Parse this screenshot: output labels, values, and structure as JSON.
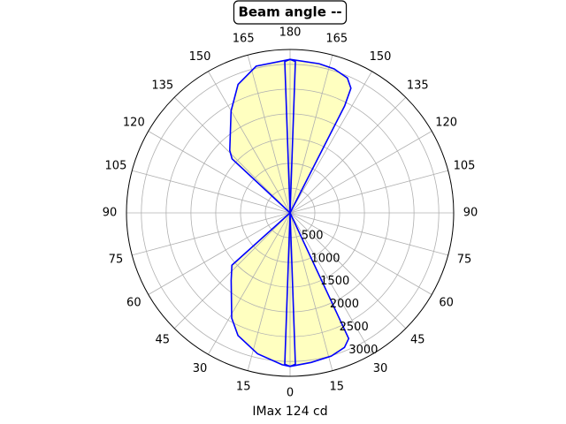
{
  "chart_data": {
    "type": "polar",
    "title": "Beam angle --",
    "xlabel": "IMax 124 cd",
    "rlim": [
      0,
      3300
    ],
    "rticks": [
      500,
      1000,
      1500,
      2000,
      2500,
      3000
    ],
    "thetaticks": [
      0,
      15,
      30,
      45,
      60,
      75,
      90,
      105,
      120,
      135,
      150,
      165,
      180,
      {
        "value": 195,
        "label": "165"
      },
      {
        "value": 210,
        "label": "150"
      },
      {
        "value": 225,
        "label": "135"
      },
      {
        "value": 240,
        "label": "120"
      },
      {
        "value": 255,
        "label": "105"
      },
      {
        "value": 270,
        "label": "90"
      },
      {
        "value": 285,
        "label": "75"
      },
      {
        "value": 300,
        "label": "60"
      },
      {
        "value": 315,
        "label": "45"
      },
      {
        "value": 330,
        "label": "30"
      },
      {
        "value": 345,
        "label": "15"
      }
    ],
    "grid": true,
    "series": [
      {
        "color": "#0000ff",
        "fill": "#ffffc0",
        "theta": [
          0,
          8,
          16,
          22,
          25,
          26,
          152,
          153,
          154,
          157,
          163,
          169,
          180,
          193,
          202,
          210,
          224,
          227,
          236,
          311,
          312,
          319,
          331,
          337,
          347,
          357,
          360
        ],
        "values": [
          3100,
          3050,
          3010,
          2930,
          2800,
          0,
          0,
          2425,
          2800,
          2960,
          3040,
          3070,
          3100,
          3040,
          2800,
          2380,
          1750,
          1600,
          0,
          0,
          1580,
          1810,
          2430,
          2690,
          2920,
          3070,
          3100
        ]
      },
      {
        "color": "#0000ff",
        "theta": [
          0,
          2,
          3,
          177,
          178,
          180,
          182,
          183,
          357,
          358,
          360
        ],
        "values": [
          3100,
          3060,
          0,
          0,
          3060,
          3100,
          3060,
          0,
          0,
          3060,
          3100
        ]
      }
    ]
  }
}
